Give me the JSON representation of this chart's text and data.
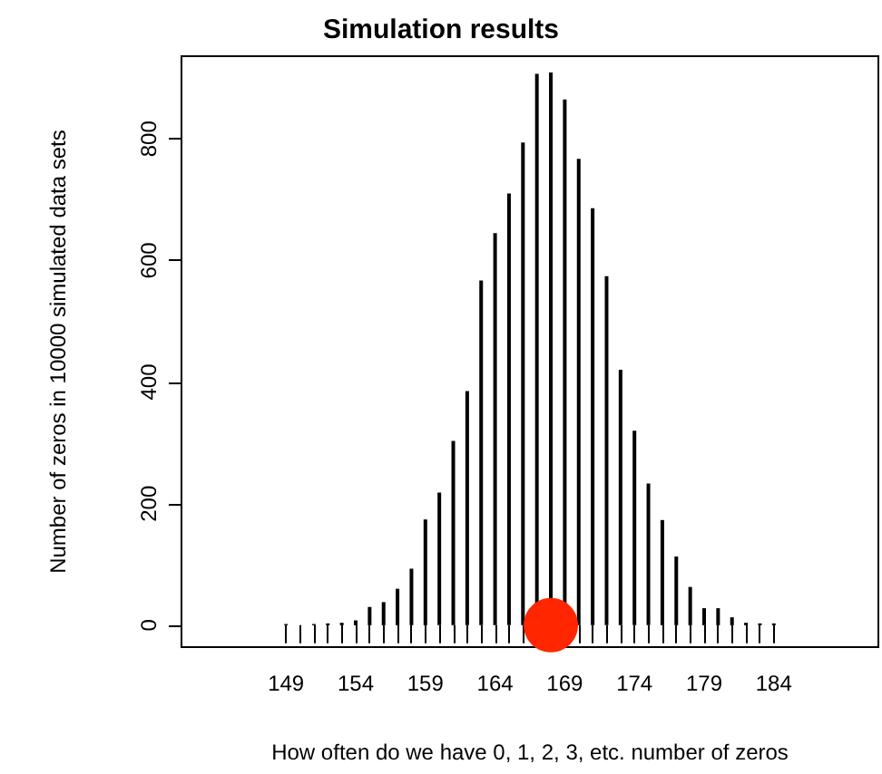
{
  "chart_data": {
    "type": "bar",
    "title": "Simulation results",
    "xlabel": "How often do we have 0, 1, 2, 3, etc. number of zeros",
    "ylabel": "Number of zeros in 10000 simulated data sets",
    "x": [
      149,
      150,
      151,
      152,
      153,
      154,
      155,
      156,
      157,
      158,
      159,
      160,
      161,
      162,
      163,
      164,
      165,
      166,
      167,
      168,
      169,
      170,
      171,
      172,
      173,
      174,
      175,
      176,
      177,
      178,
      179,
      180,
      181,
      182,
      183,
      184
    ],
    "series": [
      {
        "color": "#000000",
        "values": [
          2,
          null,
          2,
          3,
          4,
          8,
          30,
          38,
          60,
          93,
          174,
          218,
          303,
          385,
          567,
          645,
          710,
          794,
          907,
          909,
          865,
          767,
          686,
          574,
          420,
          320,
          233,
          173,
          113,
          63,
          28,
          28,
          13,
          4,
          3,
          3
        ]
      },
      {
        "type": "scatter",
        "color": "#ff2600",
        "marker": "circle",
        "x": [
          168
        ],
        "values": [
          0
        ]
      }
    ],
    "xlim": [
      141.5,
      191.5
    ],
    "xticks": [
      149,
      {
        "value": 150,
        "label": null
      },
      {
        "value": 151,
        "label": null
      },
      {
        "value": 152,
        "label": null
      },
      {
        "value": 153,
        "label": null
      },
      154,
      {
        "value": 155,
        "label": null
      },
      {
        "value": 156,
        "label": null
      },
      {
        "value": 157,
        "label": null
      },
      {
        "value": 158,
        "label": null
      },
      159,
      {
        "value": 160,
        "label": null
      },
      {
        "value": 161,
        "label": null
      },
      {
        "value": 162,
        "label": null
      },
      {
        "value": 163,
        "label": null
      },
      164,
      {
        "value": 165,
        "label": null
      },
      {
        "value": 166,
        "label": null
      },
      {
        "value": 167,
        "label": null
      },
      {
        "value": 168,
        "label": null
      },
      169,
      {
        "value": 170,
        "label": null
      },
      {
        "value": 171,
        "label": null
      },
      {
        "value": 172,
        "label": null
      },
      {
        "value": 173,
        "label": null
      },
      174,
      {
        "value": 175,
        "label": null
      },
      {
        "value": 176,
        "label": null
      },
      {
        "value": 177,
        "label": null
      },
      {
        "value": 178,
        "label": null
      },
      179,
      {
        "value": 180,
        "label": null
      },
      {
        "value": 181,
        "label": null
      },
      {
        "value": 182,
        "label": null
      },
      {
        "value": 183,
        "label": null
      },
      184
    ],
    "ylim": [
      -36,
      936
    ],
    "yticks": [
      0,
      200,
      400,
      600,
      800
    ],
    "grid": false
  }
}
